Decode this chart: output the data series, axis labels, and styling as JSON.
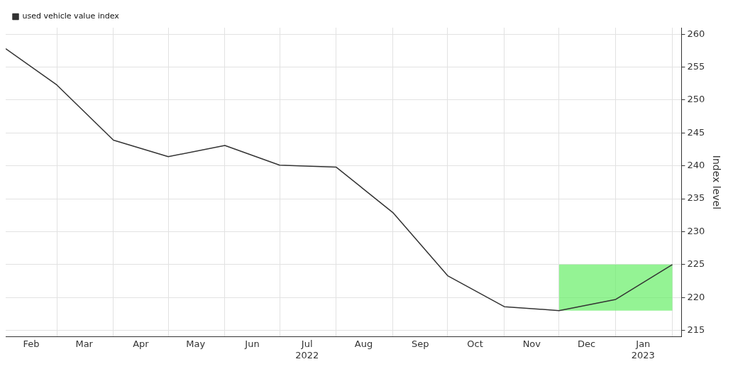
{
  "chart_data": {
    "type": "line",
    "ylabel": "Index level",
    "x": [
      "2022-02",
      "2022-03",
      "2022-04",
      "2022-05",
      "2022-06",
      "2022-07",
      "2022-08",
      "2022-09",
      "2022-10",
      "2022-11",
      "2022-12",
      "2023-01",
      "2023-02"
    ],
    "series": [
      {
        "name": "used vehicle value index",
        "color": "#333333",
        "values": [
          257.8,
          252.3,
          243.9,
          241.4,
          243.1,
          240.1,
          239.8,
          232.9,
          223.3,
          218.6,
          218.0,
          219.7,
          225.0
        ]
      }
    ],
    "xlim": [
      "2022-02",
      "2023-02-06"
    ],
    "xticks": [
      {
        "value": "2022-02-15",
        "label": "Feb"
      },
      {
        "value": "2022-03",
        "label": null
      },
      {
        "value": "2022-03-16",
        "label": "Mar"
      },
      {
        "value": "2022-04",
        "label": null
      },
      {
        "value": "2022-04-16",
        "label": "Apr"
      },
      {
        "value": "2022-05",
        "label": null
      },
      {
        "value": "2022-05-16",
        "label": "May"
      },
      {
        "value": "2022-06",
        "label": null
      },
      {
        "value": "2022-06-16",
        "label": "Jun"
      },
      {
        "value": "2022-07",
        "label": null
      },
      {
        "value": "2022-07-16",
        "label": "Jul\n2022"
      },
      {
        "value": "2022-08",
        "label": null
      },
      {
        "value": "2022-08-16",
        "label": "Aug"
      },
      {
        "value": "2022-09",
        "label": null
      },
      {
        "value": "2022-09-16",
        "label": "Sep"
      },
      {
        "value": "2022-10",
        "label": null
      },
      {
        "value": "2022-10-16",
        "label": "Oct"
      },
      {
        "value": "2022-11",
        "label": null
      },
      {
        "value": "2022-11-16",
        "label": "Nov"
      },
      {
        "value": "2022-12",
        "label": null
      },
      {
        "value": "2022-12-16",
        "label": "Dec"
      },
      {
        "value": "2023-01",
        "label": null
      },
      {
        "value": "2023-01-16",
        "label": "Jan\n2023"
      },
      {
        "value": "2023-02",
        "label": null
      }
    ],
    "ylim": [
      214,
      261
    ],
    "yticks": [
      215,
      220,
      225,
      230,
      235,
      240,
      245,
      250,
      255,
      260
    ],
    "bands": [
      {
        "axis": "x",
        "from": "2022-12",
        "to": "2023-02",
        "color": "#66ee66"
      }
    ],
    "grid": true,
    "legend": "top left",
    "marker": "none",
    "line_style": "solid"
  }
}
